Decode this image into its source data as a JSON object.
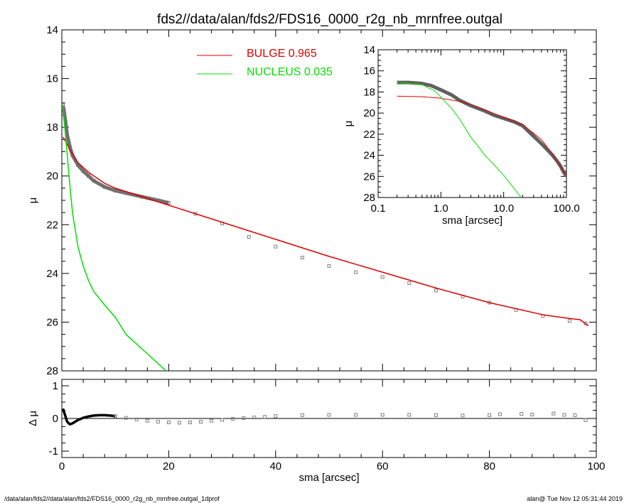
{
  "title": "fds2//data/alan/fds2/FDS16_0000_r2g_nb_mrnfree.outgal",
  "footer_left": "/data/alan/fds2//data/alan/fds2/FDS16_0000_r2g_nb_mrnfree.outgal_1dprof",
  "footer_right": "alan@  Tue Nov 12 05:31:44 2019",
  "colors": {
    "bulge": "#e00000",
    "nucleus": "#00e000",
    "data": "#808080",
    "axes": "#000000"
  },
  "chart_data": [
    {
      "type": "line",
      "panel": "main",
      "xlabel": "sma [arcsec]",
      "ylabel": "μ",
      "xlim": [
        0,
        100
      ],
      "ylim": [
        28,
        14
      ],
      "y_inverted": true,
      "xticks": [
        "0",
        "20",
        "40",
        "60",
        "80",
        "100"
      ],
      "yticks": [
        "14",
        "16",
        "18",
        "20",
        "22",
        "24",
        "26",
        "28"
      ],
      "legend": [
        {
          "label": "BULGE",
          "value": "0.965",
          "color": "#e00000"
        },
        {
          "label": "NUCLEUS",
          "value": "0.035",
          "color": "#00e000"
        }
      ],
      "legend_position": "top-center",
      "series": [
        {
          "name": "BULGE",
          "color": "#e00000",
          "style": "line",
          "x": [
            0.2,
            0.5,
            1,
            2,
            3,
            5,
            8,
            10,
            15,
            20,
            30,
            40,
            50,
            60,
            70,
            80,
            90,
            95,
            97,
            98.5
          ],
          "y": [
            18.4,
            18.5,
            18.7,
            19.1,
            19.45,
            19.85,
            20.3,
            20.5,
            20.85,
            21.2,
            21.9,
            22.6,
            23.3,
            23.95,
            24.6,
            25.2,
            25.7,
            25.85,
            25.9,
            26.15
          ]
        },
        {
          "name": "NUCLEUS",
          "color": "#00e000",
          "style": "line",
          "x": [
            0.2,
            0.5,
            1,
            1.5,
            2,
            3,
            4,
            5,
            6,
            8,
            10,
            12,
            14,
            16,
            18,
            19.5
          ],
          "y": [
            17.1,
            17.9,
            19.1,
            20.4,
            21.5,
            22.9,
            23.7,
            24.3,
            24.75,
            25.3,
            25.8,
            26.5,
            26.9,
            27.3,
            27.7,
            28.0
          ]
        },
        {
          "name": "data",
          "color": "#808080",
          "style": "markers",
          "x": [
            0.2,
            0.4,
            0.7,
            1,
            1.5,
            2,
            3,
            4,
            5,
            6,
            8,
            10,
            12,
            15,
            18,
            20,
            25,
            30,
            35,
            40,
            45,
            50,
            55,
            60,
            65,
            70,
            75,
            80,
            85,
            90,
            95,
            98
          ],
          "y": [
            17.1,
            17.3,
            17.8,
            18.3,
            18.8,
            19.15,
            19.55,
            19.8,
            20.0,
            20.2,
            20.45,
            20.6,
            20.7,
            20.85,
            21.0,
            21.1,
            21.55,
            21.95,
            22.5,
            22.9,
            23.35,
            23.7,
            23.95,
            24.15,
            24.4,
            24.7,
            24.95,
            25.2,
            25.5,
            25.75,
            25.95,
            26.05
          ]
        }
      ]
    },
    {
      "type": "scatter",
      "panel": "residual",
      "xlabel": "sma [arcsec]",
      "ylabel": "Δ μ",
      "xlim": [
        0,
        100
      ],
      "ylim": [
        -1,
        1
      ],
      "yticks": [
        "1",
        "0",
        "-1"
      ],
      "series": [
        {
          "name": "residual",
          "color": "#808080",
          "x": [
            0.2,
            0.5,
            1,
            1.5,
            2,
            3,
            4,
            5,
            6,
            7,
            8,
            9,
            10,
            12,
            14,
            16,
            18,
            20,
            22,
            24,
            26,
            28,
            30,
            32,
            34,
            36,
            38,
            40,
            45,
            50,
            55,
            60,
            65,
            70,
            75,
            80,
            82,
            86,
            88,
            92,
            94,
            96,
            98
          ],
          "y": [
            0.3,
            0.15,
            -0.1,
            -0.18,
            -0.15,
            -0.05,
            0.02,
            0.06,
            0.09,
            0.1,
            0.1,
            0.09,
            0.07,
            0.02,
            -0.03,
            -0.07,
            -0.1,
            -0.12,
            -0.13,
            -0.12,
            -0.1,
            -0.07,
            -0.04,
            -0.01,
            0.01,
            0.03,
            0.05,
            0.07,
            0.1,
            0.11,
            0.11,
            0.11,
            0.11,
            0.1,
            0.09,
            0.1,
            0.13,
            0.14,
            0.12,
            0.15,
            0.11,
            0.1,
            -0.05
          ]
        }
      ]
    },
    {
      "type": "line",
      "panel": "inset",
      "xlabel": "sma [arcsec]",
      "ylabel": "μ",
      "xscale": "log",
      "xlim": [
        0.1,
        100
      ],
      "ylim": [
        28,
        14
      ],
      "y_inverted": true,
      "xticks": [
        "0.1",
        "1.0",
        "10.0",
        "100.0"
      ],
      "yticks": [
        "14",
        "16",
        "18",
        "20",
        "22",
        "24",
        "26",
        "28"
      ],
      "series": [
        {
          "name": "BULGE",
          "color": "#e00000",
          "style": "line",
          "x": [
            0.2,
            0.5,
            1,
            2,
            3,
            5,
            10,
            20,
            40,
            60,
            80,
            100
          ],
          "y": [
            18.4,
            18.45,
            18.6,
            18.9,
            19.2,
            19.7,
            20.4,
            21.1,
            22.5,
            23.9,
            25.0,
            25.9
          ]
        },
        {
          "name": "NUCLEUS",
          "color": "#00e000",
          "style": "line",
          "x": [
            0.2,
            0.5,
            0.8,
            1,
            1.5,
            2,
            3,
            4,
            5,
            7,
            10,
            14,
            19
          ],
          "y": [
            17.1,
            17.3,
            17.9,
            18.5,
            19.6,
            20.6,
            22.3,
            23.2,
            24.0,
            24.9,
            25.9,
            27.0,
            28.0
          ]
        },
        {
          "name": "data",
          "color": "#606060",
          "style": "thick-line",
          "x": [
            0.2,
            0.3,
            0.5,
            0.7,
            1,
            1.5,
            2,
            3,
            5,
            7,
            10,
            15,
            20,
            30,
            40,
            50,
            60,
            70,
            80,
            90,
            100
          ],
          "y": [
            17.1,
            17.1,
            17.2,
            17.4,
            17.8,
            18.3,
            18.8,
            19.3,
            19.8,
            20.2,
            20.5,
            20.85,
            21.2,
            22.2,
            22.9,
            23.5,
            24.0,
            24.5,
            25.0,
            25.6,
            26.0
          ]
        }
      ]
    }
  ]
}
